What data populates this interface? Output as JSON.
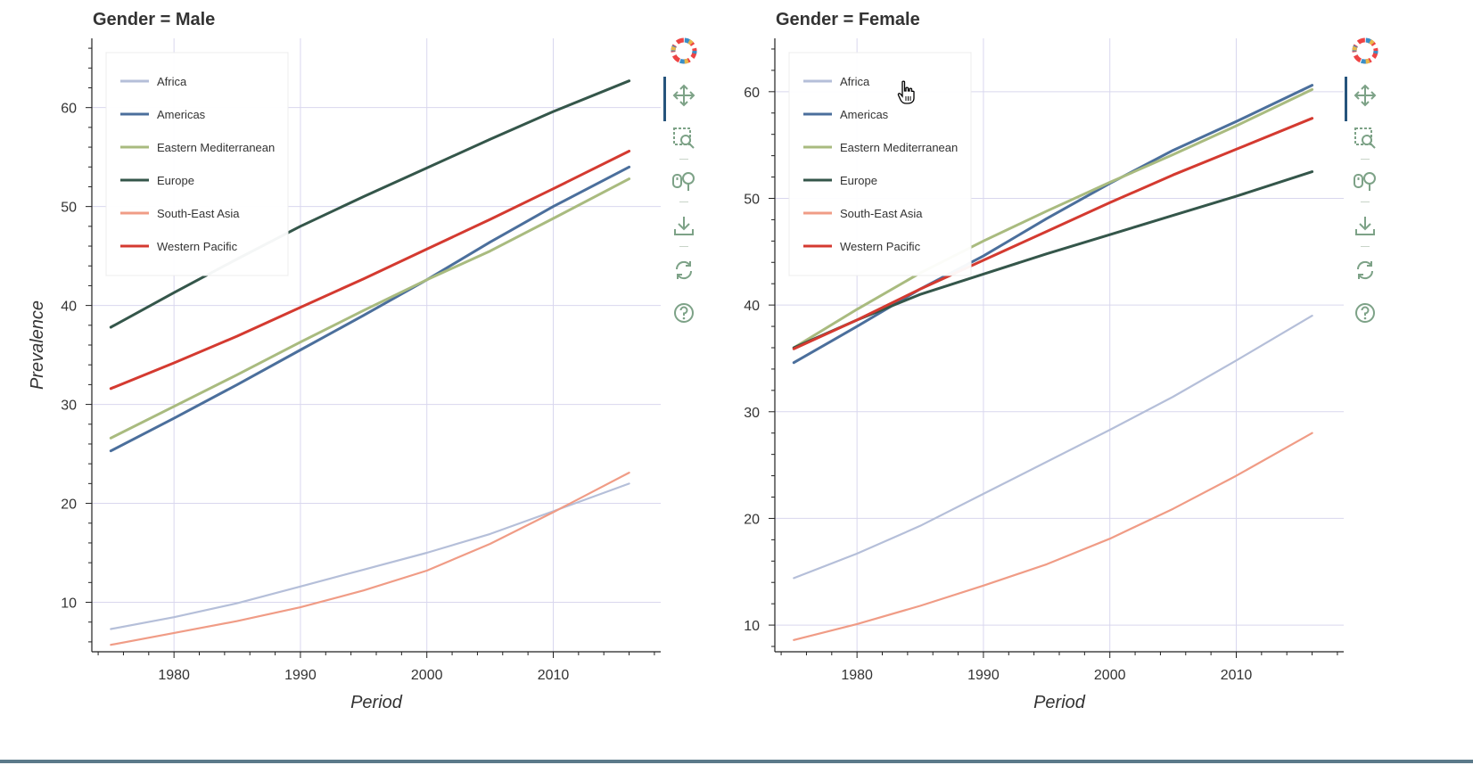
{
  "colors": {
    "Africa": "#b5bfd9",
    "Americas": "#4b6f9c",
    "Eastern Mediterranean": "#a9bb7f",
    "Europe": "#34564a",
    "South-East Asia": "#f09c86",
    "Western Pacific": "#d43a30",
    "grid": "#d9d7ee",
    "axis": "#222222",
    "legend_border": "#ececec",
    "toolbar_icon": "#7da287",
    "toolbar_active": "#26547c"
  },
  "toolbar": {
    "tools": [
      "bokeh-logo-icon",
      "pan-icon",
      "box-zoom-icon",
      "wheel-zoom-icon",
      "save-icon",
      "reset-icon",
      "help-icon"
    ]
  },
  "chart_data": [
    {
      "type": "line",
      "title": "Gender = Male",
      "xlabel": "Period",
      "ylabel": "Prevalence",
      "xlim": [
        1973.5,
        2018.5
      ],
      "ylim": [
        5,
        67
      ],
      "xticks": [
        1980,
        1990,
        2000,
        2010
      ],
      "yticks": [
        10,
        20,
        30,
        40,
        50,
        60
      ],
      "grid": true,
      "legend_position": "top-left",
      "x": [
        1975,
        1980,
        1985,
        1990,
        1995,
        2000,
        2005,
        2010,
        2016
      ],
      "series": [
        {
          "name": "Africa",
          "values": [
            7.3,
            8.5,
            9.9,
            11.6,
            13.3,
            15.0,
            16.9,
            19.2,
            22.0
          ]
        },
        {
          "name": "Americas",
          "values": [
            25.3,
            28.6,
            32.0,
            35.5,
            39.0,
            42.6,
            46.4,
            50.0,
            54.0
          ]
        },
        {
          "name": "Eastern Mediterranean",
          "values": [
            26.6,
            29.8,
            33.0,
            36.3,
            39.5,
            42.6,
            45.5,
            48.8,
            52.8
          ]
        },
        {
          "name": "Europe",
          "values": [
            37.8,
            41.3,
            44.7,
            48.0,
            51.0,
            53.9,
            56.8,
            59.6,
            62.7
          ]
        },
        {
          "name": "South-East Asia",
          "values": [
            5.7,
            6.9,
            8.1,
            9.5,
            11.2,
            13.2,
            15.9,
            19.1,
            23.1
          ]
        },
        {
          "name": "Western Pacific",
          "values": [
            31.6,
            34.2,
            36.9,
            39.8,
            42.7,
            45.7,
            48.7,
            51.8,
            55.6
          ]
        }
      ]
    },
    {
      "type": "line",
      "title": "Gender = Female",
      "xlabel": "Period",
      "ylabel": "Prevalence",
      "xlim": [
        1973.5,
        2018.5
      ],
      "ylim": [
        7.5,
        65
      ],
      "xticks": [
        1980,
        1990,
        2000,
        2010
      ],
      "yticks": [
        10,
        20,
        30,
        40,
        50,
        60
      ],
      "grid": true,
      "legend_position": "top-left",
      "x": [
        1975,
        1980,
        1985,
        1990,
        1995,
        2000,
        2005,
        2010,
        2016
      ],
      "series": [
        {
          "name": "Africa",
          "values": [
            14.4,
            16.7,
            19.3,
            22.3,
            25.3,
            28.3,
            31.4,
            34.8,
            39.0
          ]
        },
        {
          "name": "Americas",
          "values": [
            34.6,
            38.0,
            41.5,
            44.6,
            48.1,
            51.4,
            54.5,
            57.2,
            60.6
          ]
        },
        {
          "name": "Eastern Mediterranean",
          "values": [
            36.0,
            39.6,
            43.0,
            46.0,
            48.8,
            51.5,
            54.1,
            56.8,
            60.2
          ]
        },
        {
          "name": "Europe",
          "values": [
            36.0,
            38.6,
            41.0,
            42.9,
            44.8,
            46.6,
            48.4,
            50.2,
            52.5
          ]
        },
        {
          "name": "South-East Asia",
          "values": [
            8.6,
            10.1,
            11.8,
            13.7,
            15.7,
            18.1,
            20.9,
            24.0,
            28.0
          ]
        },
        {
          "name": "Western Pacific",
          "values": [
            35.9,
            38.6,
            41.5,
            44.2,
            46.9,
            49.6,
            52.2,
            54.6,
            57.5
          ]
        }
      ]
    }
  ]
}
